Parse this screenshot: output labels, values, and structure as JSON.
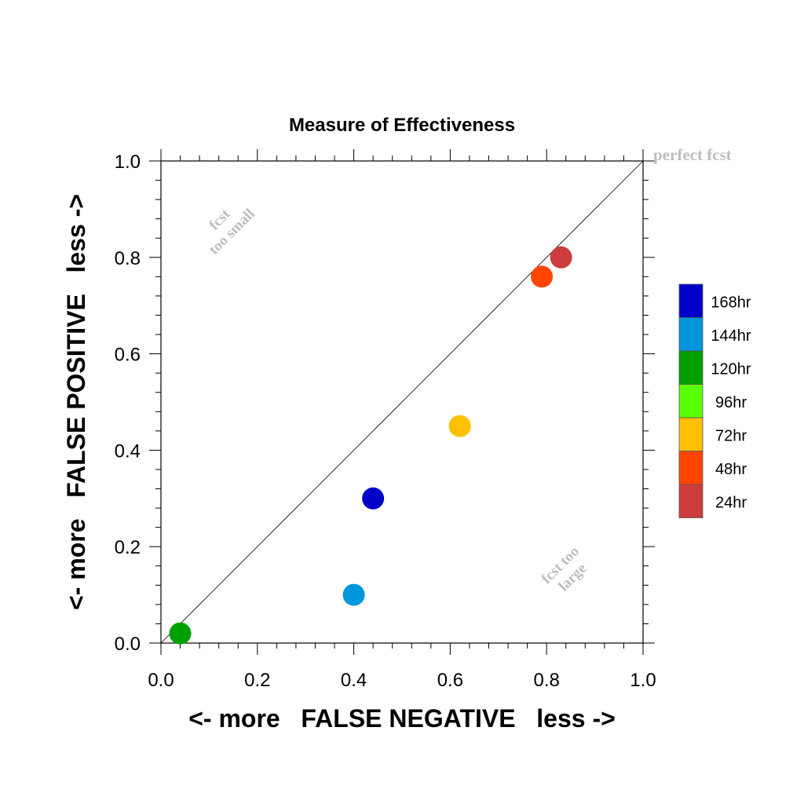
{
  "chart_data": {
    "type": "scatter",
    "title": "Measure of Effectiveness",
    "xlabel": "<- more   FALSE NEGATIVE   less ->",
    "ylabel": "<- more   FALSE POSITIVE   less ->",
    "xlim": [
      0.0,
      1.0
    ],
    "ylim": [
      0.0,
      1.0
    ],
    "xticks": [
      "0.0",
      "0.2",
      "0.4",
      "0.6",
      "0.8",
      "1.0"
    ],
    "yticks": [
      "0.0",
      "0.2",
      "0.4",
      "0.6",
      "0.8",
      "1.0"
    ],
    "grid": false,
    "reference_line": "diagonal y = x",
    "annotations": {
      "perfect": "perfect fcst",
      "small_line1": "fcst",
      "small_line2": "too small",
      "large_line1": "fcst too",
      "large_line2": "large"
    },
    "legend_position": "right",
    "points": [
      {
        "label": "168hr",
        "x": 0.44,
        "y": 0.3,
        "color": "#0000c8"
      },
      {
        "label": "144hr",
        "x": 0.4,
        "y": 0.1,
        "color": "#0096dc"
      },
      {
        "label": "120hr",
        "x": 0.04,
        "y": 0.02,
        "color": "#00a000"
      },
      {
        "label": "72hr",
        "x": 0.62,
        "y": 0.45,
        "color": "#ffc000"
      },
      {
        "label": "48hr",
        "x": 0.79,
        "y": 0.76,
        "color": "#ff4500"
      },
      {
        "label": "24hr",
        "x": 0.83,
        "y": 0.8,
        "color": "#cd3c3c"
      }
    ],
    "legend": [
      {
        "label": "168hr",
        "color": "#0000c8"
      },
      {
        "label": "144hr",
        "color": "#0096dc"
      },
      {
        "label": "120hr",
        "color": "#00a000"
      },
      {
        "label": "96hr",
        "color": "#5aff00"
      },
      {
        "label": "72hr",
        "color": "#ffc000"
      },
      {
        "label": "48hr",
        "color": "#ff4500"
      },
      {
        "label": "24hr",
        "color": "#cd3c3c"
      }
    ]
  }
}
